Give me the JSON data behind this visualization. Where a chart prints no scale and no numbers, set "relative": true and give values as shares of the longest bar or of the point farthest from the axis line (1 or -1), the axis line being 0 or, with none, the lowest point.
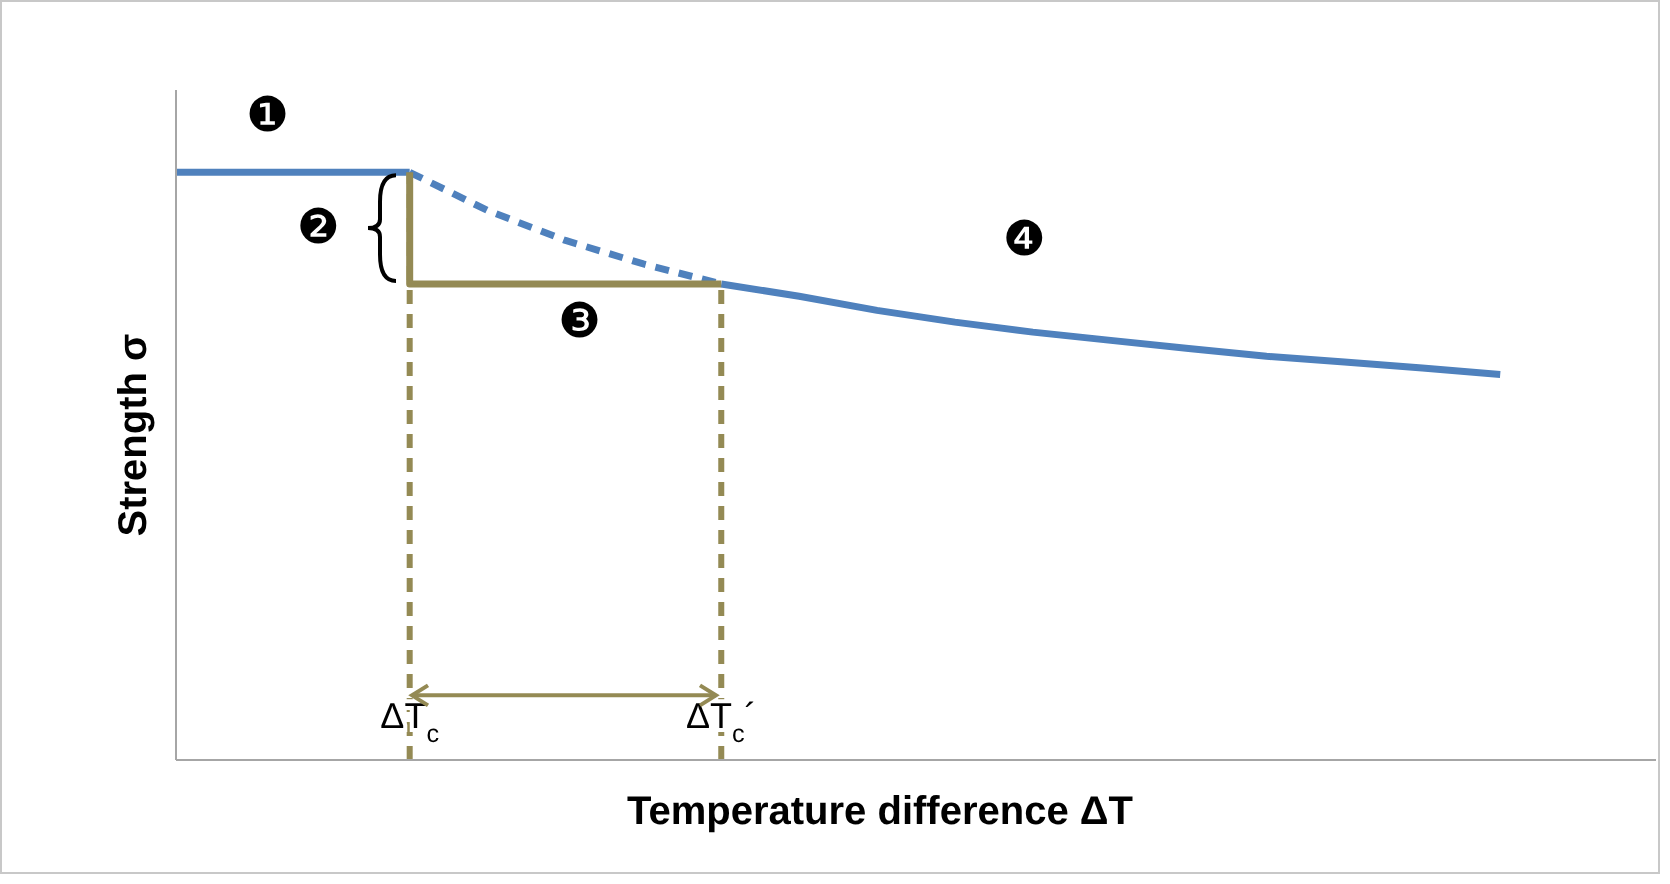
{
  "chart_data": {
    "type": "line",
    "relative": true,
    "xlabel": "Temperature difference ΔT",
    "ylabel": "Strength σ",
    "categories": [
      null,
      null,
      null,
      "ΔT$_{c}$",
      null,
      null,
      null,
      "ΔT$_{c}$´",
      null,
      null,
      null,
      null,
      null,
      null,
      null,
      null,
      null,
      null,
      null,
      null
    ],
    "series": [
      {
        "color": "#4f81bd",
        "line_style": "solid",
        "values": [
          1,
          1,
          1,
          1,
          null,
          null,
          null,
          null,
          null,
          null,
          null,
          null,
          null,
          null,
          null,
          null,
          null,
          null,
          null,
          null
        ]
      },
      {
        "color": "#4f81bd",
        "line_style": "dashed",
        "values": [
          null,
          null,
          null,
          1,
          0.935,
          0.884,
          0.844,
          0.81,
          null,
          null,
          null,
          null,
          null,
          null,
          null,
          null,
          null,
          null,
          null,
          null
        ]
      },
      {
        "color": "#4f81bd",
        "line_style": "solid",
        "values": [
          null,
          null,
          null,
          null,
          null,
          null,
          null,
          0.81,
          0.789,
          0.765,
          0.745,
          0.728,
          0.714,
          0.7,
          0.687,
          0.677,
          0.667,
          0.656,
          null,
          null
        ]
      },
      {
        "type": "step",
        "color": "#948a54",
        "line_style": "solid",
        "values": [
          null,
          null,
          null,
          1,
          0.81,
          0.81,
          0.81,
          0.81,
          null,
          null,
          null,
          null,
          null,
          null,
          null,
          null,
          null,
          null,
          null,
          null
        ]
      }
    ],
    "ref_lines": [
      {
        "axis": "x",
        "value": "ΔT$_{c}$",
        "color": "#948a54",
        "line_style": "dashed"
      },
      {
        "axis": "x",
        "value": "ΔT$_{c}$´",
        "color": "#948a54",
        "line_style": "dashed"
      }
    ],
    "annotations": [
      "❶",
      "❷",
      "❸",
      "❹"
    ],
    "marker": "none",
    "grid": false
  }
}
